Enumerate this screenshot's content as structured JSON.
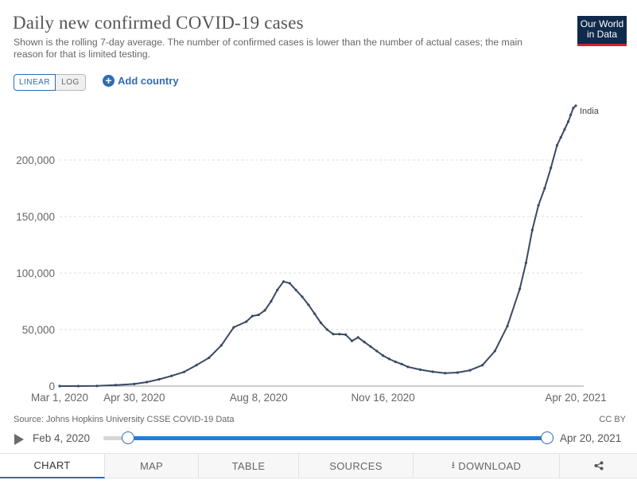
{
  "header": {
    "title": "Daily new confirmed COVID-19 cases",
    "subtitle": "Shown is the rolling 7-day average. The number of confirmed cases is lower than the number of actual cases; the main reason for that is limited testing."
  },
  "logo": {
    "line1": "Our World",
    "line2": "in Data"
  },
  "controls": {
    "linear_label": "LINEAR",
    "log_label": "LOG",
    "add_country_label": "Add country"
  },
  "chart_data": {
    "type": "line",
    "title": "Daily new confirmed COVID-19 cases",
    "xlabel": "",
    "ylabel": "",
    "ylim": [
      0,
      250000
    ],
    "xlim_days": [
      0,
      415
    ],
    "y_ticks": [
      0,
      50000,
      100000,
      150000,
      200000
    ],
    "y_tick_labels": [
      "0",
      "50,000",
      "100,000",
      "150,000",
      "200,000"
    ],
    "x_ticks": [
      {
        "day": 0,
        "label": "Mar 1, 2020"
      },
      {
        "day": 60,
        "label": "Apr 30, 2020"
      },
      {
        "day": 160,
        "label": "Aug 8, 2020"
      },
      {
        "day": 260,
        "label": "Nov 16, 2020"
      },
      {
        "day": 415,
        "label": "Apr 20, 2021"
      }
    ],
    "grid": true,
    "series": [
      {
        "name": "India",
        "x_unit": "days since Mar 1, 2020",
        "x": [
          0,
          15,
          30,
          45,
          60,
          70,
          80,
          90,
          100,
          110,
          120,
          130,
          140,
          150,
          155,
          160,
          165,
          170,
          175,
          180,
          185,
          190,
          195,
          200,
          205,
          210,
          215,
          220,
          225,
          230,
          235,
          240,
          245,
          250,
          255,
          260,
          265,
          270,
          275,
          280,
          290,
          300,
          310,
          320,
          330,
          340,
          350,
          360,
          370,
          375,
          380,
          385,
          390,
          395,
          400,
          403,
          406,
          409,
          411,
          413,
          415
        ],
        "values": [
          0,
          20,
          120,
          900,
          1800,
          3500,
          6000,
          9000,
          12500,
          18500,
          25000,
          36000,
          52000,
          57000,
          62000,
          63000,
          67000,
          75000,
          85000,
          92500,
          91000,
          85000,
          79000,
          72000,
          64000,
          56000,
          50000,
          46000,
          46000,
          45500,
          40000,
          43000,
          39000,
          35000,
          31000,
          27000,
          24000,
          21500,
          19500,
          17000,
          14500,
          12700,
          11500,
          12000,
          14000,
          18500,
          31000,
          53000,
          86000,
          109000,
          138000,
          160000,
          175000,
          193000,
          213000,
          220000,
          227000,
          234000,
          240000,
          246000,
          248000
        ]
      }
    ],
    "annotations": [
      "India"
    ]
  },
  "footer": {
    "source": "Source: Johns Hopkins University CSSE COVID-19 Data",
    "license": "CC BY"
  },
  "timeline": {
    "start_label": "Feb 4, 2020",
    "end_label": "Apr 20, 2021"
  },
  "tabs": {
    "chart": "CHART",
    "map": "MAP",
    "table": "TABLE",
    "sources": "SOURCES",
    "download": "DOWNLOAD",
    "share_icon": "share-icon"
  },
  "colors": {
    "line": "#3a4a63",
    "accent": "#2f6cb3",
    "slider": "#1f7de0",
    "logo_bg": "#0f2a4a",
    "logo_bar": "#d7202d"
  }
}
